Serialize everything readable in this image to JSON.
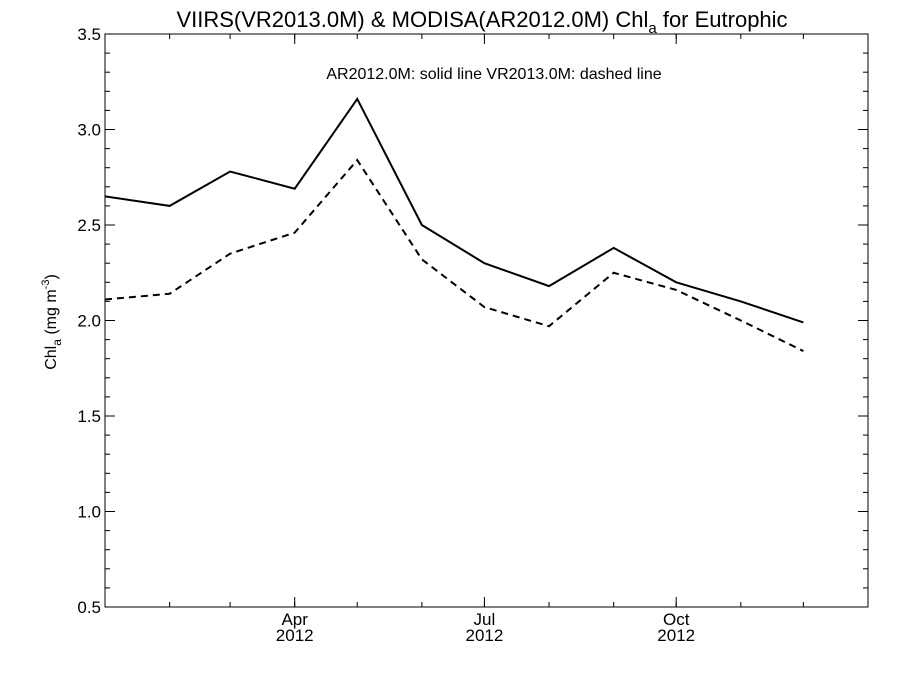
{
  "chart_data": {
    "type": "line",
    "title": {
      "prefix": "VIIRS(VR2013.0M) & MODISA(AR2012.0M)  Chl",
      "subscript": "a",
      "suffix": " for Eutrophic"
    },
    "annotation": "AR2012.0M: solid line   VR2013.0M: dashed line",
    "ylabel": {
      "prefix": "Chl",
      "subscript": "a",
      "suffix": " (mg m",
      "superscript": "-3",
      "close": ")"
    },
    "xlabel": "",
    "ylim": [
      0.5,
      3.5
    ],
    "xlim": [
      "2012-01-01",
      "2013-01-01"
    ],
    "y_ticks": [
      {
        "value": 0.5,
        "label": "0.5"
      },
      {
        "value": 1.0,
        "label": "1.0"
      },
      {
        "value": 1.5,
        "label": "1.5"
      },
      {
        "value": 2.0,
        "label": "2.0"
      },
      {
        "value": 2.5,
        "label": "2.5"
      },
      {
        "value": 3.0,
        "label": "3.0"
      },
      {
        "value": 3.5,
        "label": "3.5"
      }
    ],
    "x_ticks": [
      {
        "date": "2012-04-01",
        "label": "Apr",
        "year": "2012"
      },
      {
        "date": "2012-07-01",
        "label": "Jul",
        "year": "2012"
      },
      {
        "date": "2012-10-01",
        "label": "Oct",
        "year": "2012"
      }
    ],
    "series": [
      {
        "style": "solid",
        "color": "#000000",
        "points": [
          {
            "x": "2012-01-01",
            "y": 2.65
          },
          {
            "x": "2012-02-01",
            "y": 2.6
          },
          {
            "x": "2012-03-01",
            "y": 2.78
          },
          {
            "x": "2012-04-01",
            "y": 2.69
          },
          {
            "x": "2012-05-01",
            "y": 3.16
          },
          {
            "x": "2012-06-01",
            "y": 2.5
          },
          {
            "x": "2012-07-01",
            "y": 2.3
          },
          {
            "x": "2012-08-01",
            "y": 2.18
          },
          {
            "x": "2012-09-01",
            "y": 2.38
          },
          {
            "x": "2012-10-01",
            "y": 2.2
          },
          {
            "x": "2012-11-01",
            "y": 2.1
          },
          {
            "x": "2012-12-01",
            "y": 1.99
          }
        ]
      },
      {
        "style": "dashed",
        "color": "#000000",
        "points": [
          {
            "x": "2012-01-01",
            "y": 2.11
          },
          {
            "x": "2012-02-01",
            "y": 2.14
          },
          {
            "x": "2012-03-01",
            "y": 2.35
          },
          {
            "x": "2012-04-01",
            "y": 2.46
          },
          {
            "x": "2012-05-01",
            "y": 2.84
          },
          {
            "x": "2012-06-01",
            "y": 2.32
          },
          {
            "x": "2012-07-01",
            "y": 2.07
          },
          {
            "x": "2012-08-01",
            "y": 1.97
          },
          {
            "x": "2012-09-01",
            "y": 2.25
          },
          {
            "x": "2012-10-01",
            "y": 2.16
          },
          {
            "x": "2012-11-01",
            "y": 2.0
          },
          {
            "x": "2012-12-01",
            "y": 1.84
          }
        ]
      }
    ],
    "grid": false,
    "legend": "none"
  }
}
